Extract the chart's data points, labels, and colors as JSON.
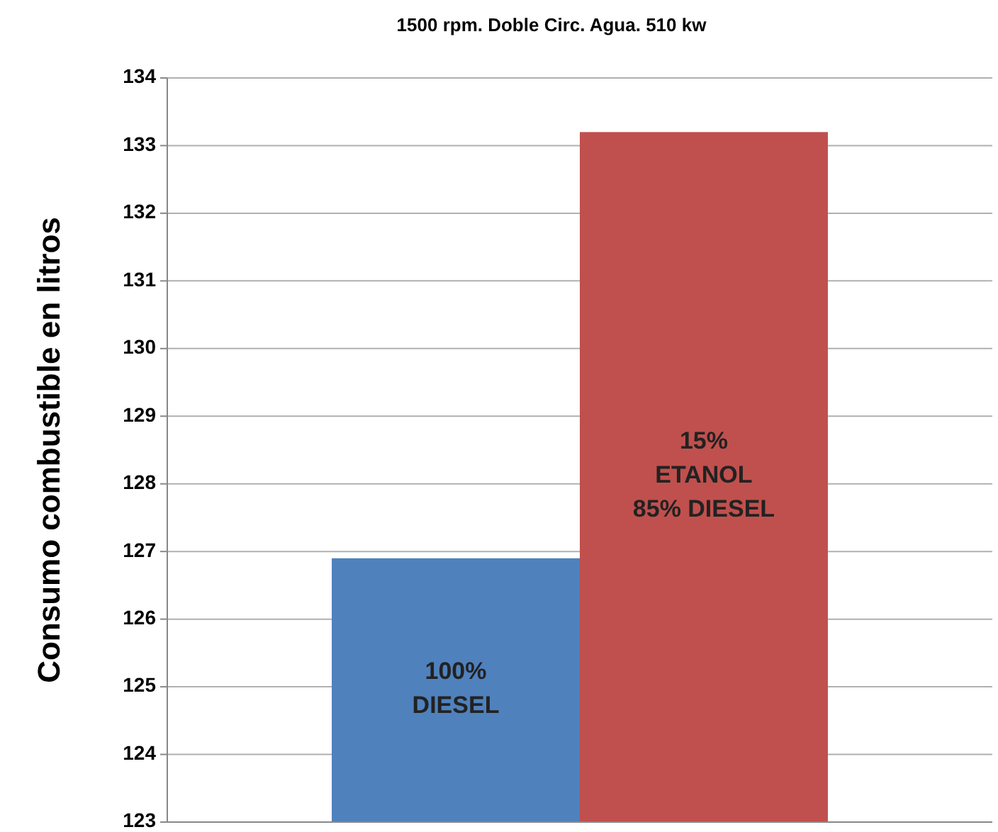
{
  "chart_data": {
    "type": "bar",
    "title": "1500 rpm. Doble Circ. Agua. 510 kw",
    "ylabel": "Consumo combustible en litros",
    "categories": [
      "100%\nDIESEL",
      "15%\nETANOL\n85% DIESEL"
    ],
    "values": [
      126.9,
      133.2
    ],
    "colors": [
      "#4f81bd",
      "#c0504d"
    ],
    "ylim": [
      123,
      134
    ],
    "yticks": [
      123,
      124,
      125,
      126,
      127,
      128,
      129,
      130,
      131,
      132,
      133,
      134
    ],
    "grid": "y"
  }
}
